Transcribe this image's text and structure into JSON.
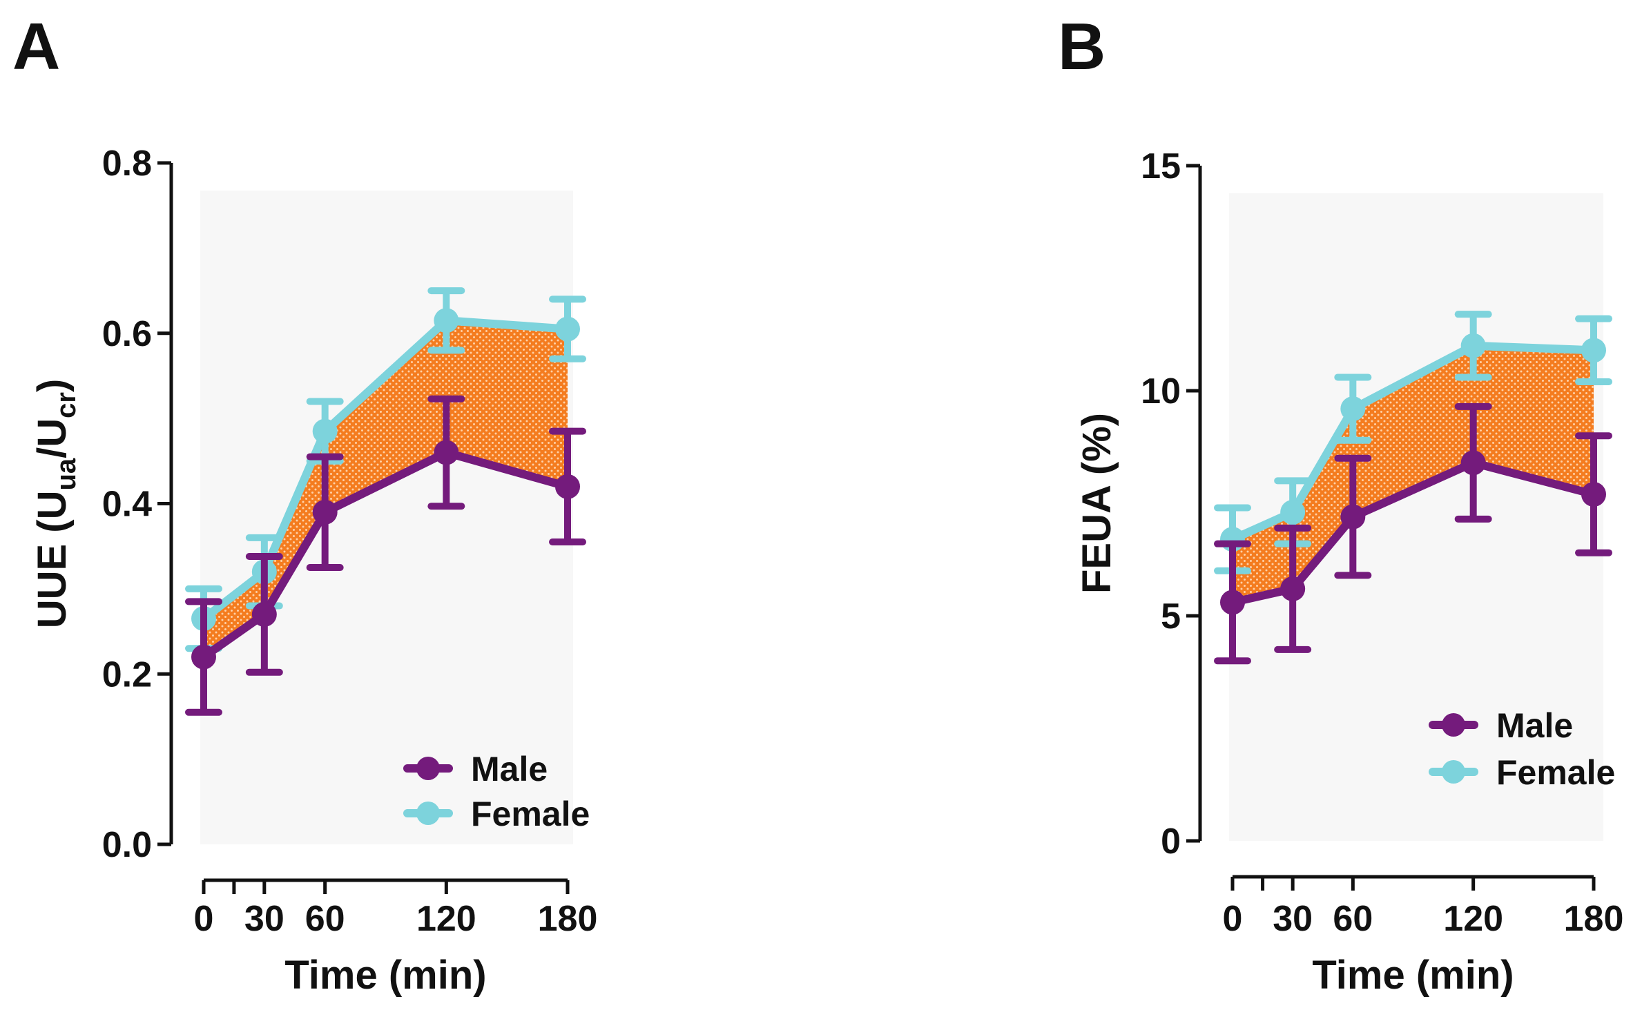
{
  "colors": {
    "male": "#741b7c",
    "female": "#7dd3dc",
    "difference_fill": "#f47c1f",
    "difference_dots": "#ffd0a6",
    "axis": "#111111",
    "background_shade": "#f7f7f7"
  },
  "chart_data": [
    {
      "type": "line",
      "panel_label": "A",
      "x": [
        0,
        30,
        60,
        120,
        180
      ],
      "xlabel": "Time (min)",
      "ylabel_parts": [
        "UUE (U",
        "ua",
        "/U",
        "cr",
        ")"
      ],
      "ylim": [
        0,
        0.8
      ],
      "yticks": [
        0,
        0.2,
        0.4,
        0.6,
        0.8
      ],
      "ytick_labels": [
        "0.0",
        "0.2",
        "0.4",
        "0.6",
        "0.8"
      ],
      "xtick_labels": [
        "0",
        "30",
        "60",
        "120",
        "180"
      ],
      "legend_position": "bottom-right",
      "shaded_region": "area between Male and Female means",
      "series": [
        {
          "name": "Male",
          "values": [
            0.22,
            0.27,
            0.39,
            0.46,
            0.42
          ],
          "errors": [
            0.065,
            0.068,
            0.065,
            0.063,
            0.065
          ]
        },
        {
          "name": "Female",
          "values": [
            0.265,
            0.32,
            0.485,
            0.615,
            0.605
          ],
          "errors": [
            0.035,
            0.04,
            0.035,
            0.035,
            0.035
          ]
        }
      ]
    },
    {
      "type": "line",
      "panel_label": "B",
      "x": [
        0,
        30,
        60,
        120,
        180
      ],
      "xlabel": "Time (min)",
      "ylabel_parts": [
        "FEUA (%)"
      ],
      "ylim": [
        0,
        15
      ],
      "yticks": [
        0,
        5,
        10,
        15
      ],
      "ytick_labels": [
        "0",
        "5",
        "10",
        "15"
      ],
      "xtick_labels": [
        "0",
        "30",
        "60",
        "120",
        "180"
      ],
      "legend_position": "bottom-right",
      "shaded_region": "area between Male and Female means",
      "series": [
        {
          "name": "Male",
          "values": [
            5.3,
            5.6,
            7.2,
            8.4,
            7.7
          ],
          "errors": [
            1.3,
            1.35,
            1.3,
            1.25,
            1.3
          ]
        },
        {
          "name": "Female",
          "values": [
            6.7,
            7.3,
            9.6,
            11.0,
            10.9
          ],
          "errors": [
            0.7,
            0.7,
            0.7,
            0.7,
            0.7
          ]
        }
      ]
    }
  ]
}
